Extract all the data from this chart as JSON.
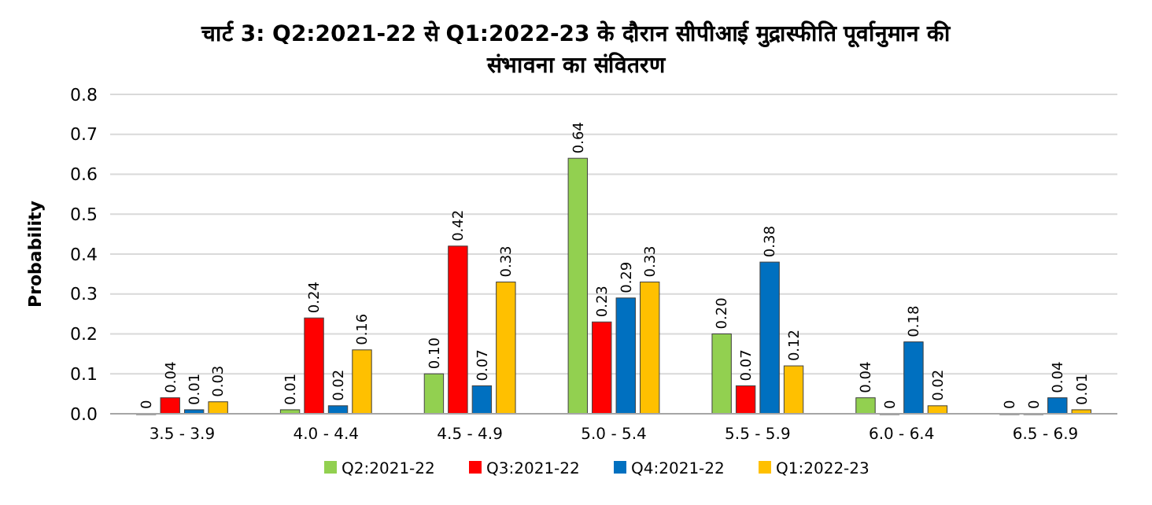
{
  "chart_data": {
    "type": "bar",
    "title": "चार्ट 3: Q2:2021-22 से Q1:2022-23 के दौरान सीपीआई मुद्रास्फीति पूर्वानुमान की संभावना का संवितरण",
    "ylabel": "Probability",
    "categories": [
      "3.5 - 3.9",
      "4.0 - 4.4",
      "4.5 - 4.9",
      "5.0 - 5.4",
      "5.5 - 5.9",
      "6.0 - 6.4",
      "6.5 - 6.9"
    ],
    "series": [
      {
        "name": "Q2:2021-22",
        "color": "#92d050",
        "values": [
          0,
          0.01,
          0.1,
          0.64,
          0.2,
          0.04,
          0
        ],
        "value_labels": [
          "0",
          "0.01",
          "0.10",
          "0.64",
          "0.20",
          "0.04",
          "0"
        ]
      },
      {
        "name": "Q3:2021-22",
        "color": "#ff0000",
        "values": [
          0.04,
          0.24,
          0.42,
          0.23,
          0.07,
          0,
          0
        ],
        "value_labels": [
          "0.04",
          "0.24",
          "0.42",
          "0.23",
          "0.07",
          "0",
          "0"
        ]
      },
      {
        "name": "Q4:2021-22",
        "color": "#0070c0",
        "values": [
          0.01,
          0.02,
          0.07,
          0.29,
          0.38,
          0.18,
          0.04
        ],
        "value_labels": [
          "0.01",
          "0.02",
          "0.07",
          "0.29",
          "0.38",
          "0.18",
          "0.04"
        ]
      },
      {
        "name": "Q1:2022-23",
        "color": "#ffc000",
        "values": [
          0.03,
          0.16,
          0.33,
          0.33,
          0.12,
          0.02,
          0.01
        ],
        "value_labels": [
          "0.03",
          "0.16",
          "0.33",
          "0.33",
          "0.12",
          "0.02",
          "0.01"
        ]
      }
    ],
    "ylim": [
      0,
      0.8
    ],
    "yticks": [
      {
        "value": 0,
        "label": "0.0"
      },
      {
        "value": 0.1,
        "label": "0.1"
      },
      {
        "value": 0.2,
        "label": "0.2"
      },
      {
        "value": 0.3,
        "label": "0.3"
      },
      {
        "value": 0.4,
        "label": "0.4"
      },
      {
        "value": 0.5,
        "label": "0.5"
      },
      {
        "value": 0.6,
        "label": "0.6"
      },
      {
        "value": 0.7,
        "label": "0.7"
      },
      {
        "value": 0.8,
        "label": "0.8"
      }
    ],
    "grid": "y",
    "legend": "bottom"
  }
}
